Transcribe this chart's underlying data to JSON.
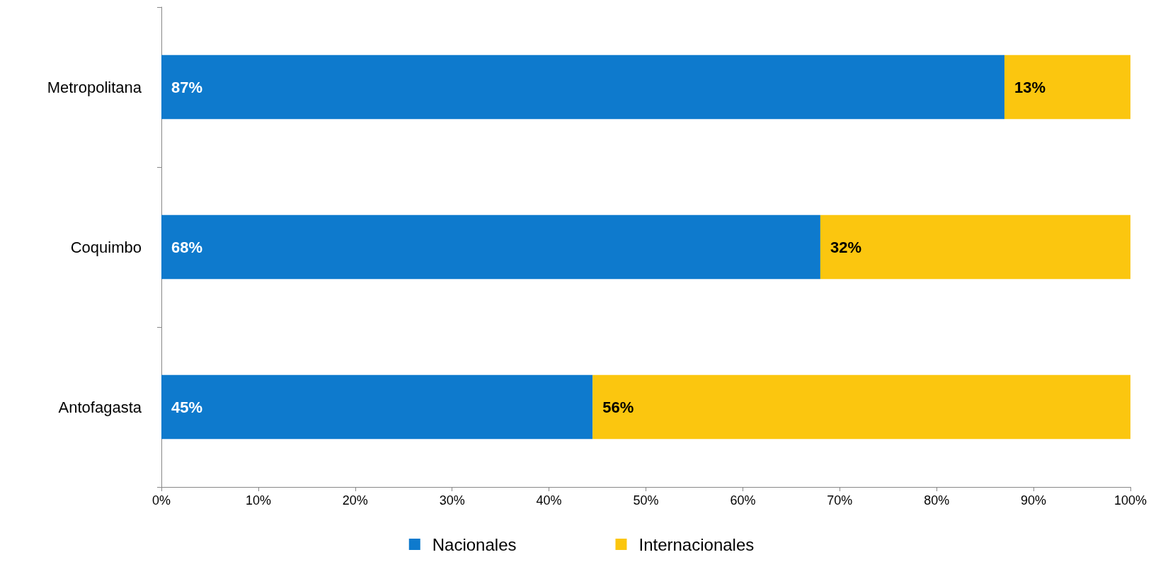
{
  "chart_data": {
    "type": "bar",
    "orientation": "horizontal",
    "stacked": true,
    "categories": [
      "Metropolitana",
      "Coquimbo",
      "Antofagasta"
    ],
    "series": [
      {
        "name": "Nacionales",
        "color": "#0e7acd",
        "values": [
          87,
          68,
          44.5
        ],
        "value_labels": [
          "87%",
          "68%",
          "45%"
        ]
      },
      {
        "name": "Internacionales",
        "color": "#fbc60f",
        "values": [
          13,
          32,
          55.5
        ],
        "value_labels": [
          "13%",
          "32%",
          "56%"
        ]
      }
    ],
    "xlim": [
      0,
      100
    ],
    "xticks": [
      {
        "value": 0,
        "label": "0%"
      },
      {
        "value": 10,
        "label": "10%"
      },
      {
        "value": 20,
        "label": "20%"
      },
      {
        "value": 30,
        "label": "30%"
      },
      {
        "value": 40,
        "label": "40%"
      },
      {
        "value": 50,
        "label": "50%"
      },
      {
        "value": 60,
        "label": "60%"
      },
      {
        "value": 70,
        "label": "70%"
      },
      {
        "value": 80,
        "label": "80%"
      },
      {
        "value": 90,
        "label": "90%"
      },
      {
        "value": 100,
        "label": "100%"
      }
    ],
    "grid": false,
    "legend": "bottom"
  }
}
